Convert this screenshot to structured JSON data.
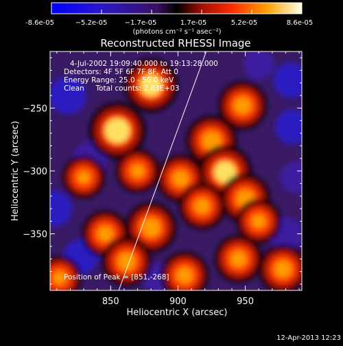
{
  "colorbar": {
    "ticks": [
      "-8.6e-05",
      "−5.2e-05",
      "−1.7e-05",
      "1.7e-05",
      "5.2e-05",
      "8.6e-05"
    ],
    "units": "(photons cm⁻² s⁻¹ asec⁻²)",
    "range": [
      -8.6e-05,
      8.6e-05
    ]
  },
  "chart_data": {
    "type": "heatmap",
    "title": "Reconstructed RHESSI Image",
    "xlabel": "Heliocentric X (arcsec)",
    "ylabel": "Heliocentric Y (arcsec)",
    "xlim": [
      805,
      992
    ],
    "ylim": [
      -395,
      -205
    ],
    "x_ticks": [
      850,
      900,
      950
    ],
    "y_ticks": [
      -250,
      -300,
      -350
    ],
    "y_tick_labels": [
      "−250",
      "−300",
      "−350"
    ],
    "limb_line": [
      [
        856,
        -395
      ],
      [
        921,
        -205
      ]
    ],
    "peak": [
      851,
      -268
    ],
    "hotspots": [
      {
        "x": 855,
        "y": -268,
        "v": 1.0
      },
      {
        "x": 880,
        "y": -232,
        "v": 0.85
      },
      {
        "x": 925,
        "y": -276,
        "v": 0.7
      },
      {
        "x": 935,
        "y": -301,
        "v": 0.85
      },
      {
        "x": 948,
        "y": -248,
        "v": 0.6
      },
      {
        "x": 902,
        "y": -306,
        "v": 0.55
      },
      {
        "x": 870,
        "y": -300,
        "v": 0.35
      },
      {
        "x": 918,
        "y": -328,
        "v": 0.5
      },
      {
        "x": 950,
        "y": -322,
        "v": 0.65
      },
      {
        "x": 880,
        "y": -345,
        "v": 0.7
      },
      {
        "x": 846,
        "y": -350,
        "v": 0.5
      },
      {
        "x": 862,
        "y": -372,
        "v": 0.65
      },
      {
        "x": 905,
        "y": -383,
        "v": 0.55
      },
      {
        "x": 945,
        "y": -370,
        "v": 0.55
      },
      {
        "x": 978,
        "y": -378,
        "v": 0.6
      },
      {
        "x": 960,
        "y": -340,
        "v": 0.4
      },
      {
        "x": 830,
        "y": -305,
        "v": 0.3
      },
      {
        "x": 812,
        "y": -385,
        "v": 0.35
      }
    ],
    "coldspots": [
      {
        "x": 818,
        "y": -240,
        "v": 1.0
      },
      {
        "x": 835,
        "y": -290,
        "v": 0.7
      },
      {
        "x": 808,
        "y": -330,
        "v": 0.9
      },
      {
        "x": 828,
        "y": -368,
        "v": 0.8
      },
      {
        "x": 984,
        "y": -228,
        "v": 0.85
      },
      {
        "x": 985,
        "y": -265,
        "v": 0.8
      },
      {
        "x": 988,
        "y": -305,
        "v": 0.6
      },
      {
        "x": 980,
        "y": -350,
        "v": 0.7
      },
      {
        "x": 885,
        "y": -385,
        "v": 0.4
      },
      {
        "x": 960,
        "y": -215,
        "v": 0.5
      }
    ]
  },
  "info": {
    "line1": "4-Jul-2002 19:09:40.000 to 19:13:28.000",
    "line2": "Detectors: 4F 5F 6F 7F 8F, Att 0",
    "line3": "Energy Range: 25.0 - 50.0 keV",
    "line4": "Clean     Total counts: 2.83E+03",
    "peak": "Position of Peak = [851,-268]"
  },
  "footer": {
    "date": "12-Apr-2013 12:23"
  }
}
